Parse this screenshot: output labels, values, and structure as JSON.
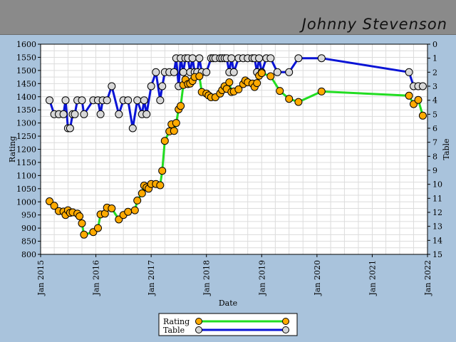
{
  "header": {
    "player_name": "Johnny Stevenson"
  },
  "colors": {
    "background": "#a9c3dc",
    "header": "#8a8a8a",
    "plot_bg": "#ffffff",
    "grid": "#dcdcdc",
    "rating_line": "#22dd22",
    "rating_marker": "#ffaa00",
    "table_line": "#0a14d6",
    "table_marker": "#d8d8d8"
  },
  "chart_data": {
    "type": "line",
    "title": "",
    "xlabel": "Date",
    "ylabel": "Rating",
    "y2label": "Table",
    "xlim": [
      "2015-01-01",
      "2022-01-01"
    ],
    "ylim": [
      800,
      1600
    ],
    "y2lim": [
      15,
      0
    ],
    "y2_inverted": true,
    "grid": true,
    "legend_position": "bottom-center",
    "x_ticks": [
      "Jan 2015",
      "Jan 2016",
      "Jan 2017",
      "Jan 2018",
      "Jan 2019",
      "Jan 2020",
      "Jan 2021",
      "Jan 2022"
    ],
    "y_ticks": [
      800,
      850,
      900,
      950,
      1000,
      1050,
      1100,
      1150,
      1200,
      1250,
      1300,
      1350,
      1400,
      1450,
      1500,
      1550,
      1600
    ],
    "y2_ticks": [
      0,
      1,
      2,
      3,
      4,
      5,
      6,
      7,
      8,
      9,
      10,
      11,
      12,
      13,
      14,
      15
    ],
    "series": [
      {
        "name": "Rating",
        "axis": "left",
        "points": [
          [
            "2015-03-01",
            1002
          ],
          [
            "2015-04-01",
            985
          ],
          [
            "2015-05-01",
            965
          ],
          [
            "2015-06-01",
            963
          ],
          [
            "2015-06-15",
            950
          ],
          [
            "2015-07-01",
            968
          ],
          [
            "2015-07-15",
            958
          ],
          [
            "2015-08-01",
            960
          ],
          [
            "2015-09-01",
            955
          ],
          [
            "2015-09-15",
            945
          ],
          [
            "2015-10-01",
            918
          ],
          [
            "2015-10-15",
            875
          ],
          [
            "2015-12-15",
            885
          ],
          [
            "2016-01-15",
            900
          ],
          [
            "2016-02-01",
            952
          ],
          [
            "2016-03-01",
            955
          ],
          [
            "2016-03-15",
            978
          ],
          [
            "2016-04-15",
            975
          ],
          [
            "2016-06-01",
            933
          ],
          [
            "2016-07-01",
            950
          ],
          [
            "2016-08-01",
            962
          ],
          [
            "2016-09-15",
            968
          ],
          [
            "2016-10-01",
            1005
          ],
          [
            "2016-11-01",
            1032
          ],
          [
            "2016-11-15",
            1062
          ],
          [
            "2016-12-01",
            1055
          ],
          [
            "2016-12-15",
            1050
          ],
          [
            "2017-01-01",
            1068
          ],
          [
            "2017-02-01",
            1068
          ],
          [
            "2017-03-01",
            1063
          ],
          [
            "2017-03-15",
            1118
          ],
          [
            "2017-04-01",
            1232
          ],
          [
            "2017-05-01",
            1268
          ],
          [
            "2017-05-15",
            1295
          ],
          [
            "2017-06-01",
            1270
          ],
          [
            "2017-06-15",
            1300
          ],
          [
            "2017-07-01",
            1352
          ],
          [
            "2017-07-15",
            1365
          ],
          [
            "2017-08-01",
            1445
          ],
          [
            "2017-08-15",
            1465
          ],
          [
            "2017-09-01",
            1448
          ],
          [
            "2017-09-15",
            1450
          ],
          [
            "2017-10-01",
            1460
          ],
          [
            "2017-10-15",
            1475
          ],
          [
            "2017-11-15",
            1478
          ],
          [
            "2017-12-01",
            1418
          ],
          [
            "2018-01-01",
            1412
          ],
          [
            "2018-01-15",
            1405
          ],
          [
            "2018-02-01",
            1398
          ],
          [
            "2018-03-01",
            1398
          ],
          [
            "2018-04-01",
            1412
          ],
          [
            "2018-04-15",
            1425
          ],
          [
            "2018-05-01",
            1440
          ],
          [
            "2018-05-15",
            1430
          ],
          [
            "2018-06-01",
            1455
          ],
          [
            "2018-06-15",
            1418
          ],
          [
            "2018-07-01",
            1420
          ],
          [
            "2018-08-01",
            1428
          ],
          [
            "2018-09-01",
            1448
          ],
          [
            "2018-09-15",
            1462
          ],
          [
            "2018-10-01",
            1455
          ],
          [
            "2018-11-01",
            1450
          ],
          [
            "2018-11-15",
            1437
          ],
          [
            "2018-12-01",
            1452
          ],
          [
            "2018-12-15",
            1480
          ],
          [
            "2019-01-01",
            1490
          ],
          [
            "2019-03-01",
            1478
          ],
          [
            "2019-05-01",
            1422
          ],
          [
            "2019-07-01",
            1392
          ],
          [
            "2019-09-01",
            1380
          ],
          [
            "2020-02-01",
            1420
          ],
          [
            "2021-09-01",
            1404
          ],
          [
            "2021-10-01",
            1372
          ],
          [
            "2021-11-01",
            1388
          ],
          [
            "2021-12-01",
            1328
          ]
        ]
      },
      {
        "name": "Table",
        "axis": "right",
        "points": [
          [
            "2015-03-01",
            4
          ],
          [
            "2015-04-01",
            5
          ],
          [
            "2015-05-01",
            5
          ],
          [
            "2015-06-01",
            5
          ],
          [
            "2015-06-15",
            4
          ],
          [
            "2015-07-01",
            6
          ],
          [
            "2015-07-15",
            6
          ],
          [
            "2015-08-01",
            5
          ],
          [
            "2015-08-15",
            5
          ],
          [
            "2015-09-01",
            4
          ],
          [
            "2015-10-01",
            4
          ],
          [
            "2015-10-15",
            5
          ],
          [
            "2015-12-15",
            4
          ],
          [
            "2016-01-15",
            4
          ],
          [
            "2016-02-01",
            5
          ],
          [
            "2016-02-15",
            4
          ],
          [
            "2016-03-15",
            4
          ],
          [
            "2016-04-15",
            3
          ],
          [
            "2016-06-01",
            5
          ],
          [
            "2016-07-01",
            4
          ],
          [
            "2016-08-01",
            4
          ],
          [
            "2016-09-01",
            6
          ],
          [
            "2016-10-01",
            4
          ],
          [
            "2016-11-01",
            5
          ],
          [
            "2016-11-15",
            4
          ],
          [
            "2016-12-01",
            5
          ],
          [
            "2017-01-01",
            3
          ],
          [
            "2017-02-01",
            2
          ],
          [
            "2017-03-01",
            4
          ],
          [
            "2017-03-15",
            3
          ],
          [
            "2017-04-01",
            2
          ],
          [
            "2017-05-01",
            2
          ],
          [
            "2017-06-01",
            2
          ],
          [
            "2017-06-15",
            1
          ],
          [
            "2017-07-01",
            3
          ],
          [
            "2017-07-15",
            1
          ],
          [
            "2017-08-01",
            2
          ],
          [
            "2017-08-15",
            1
          ],
          [
            "2017-09-01",
            1
          ],
          [
            "2017-09-15",
            2
          ],
          [
            "2017-10-01",
            1
          ],
          [
            "2017-10-15",
            2
          ],
          [
            "2017-11-01",
            2
          ],
          [
            "2017-11-15",
            1
          ],
          [
            "2017-12-01",
            2
          ],
          [
            "2018-01-01",
            2
          ],
          [
            "2018-02-01",
            1
          ],
          [
            "2018-02-15",
            1
          ],
          [
            "2018-03-01",
            1
          ],
          [
            "2018-04-01",
            1
          ],
          [
            "2018-04-15",
            1
          ],
          [
            "2018-05-01",
            1
          ],
          [
            "2018-05-15",
            1
          ],
          [
            "2018-06-01",
            2
          ],
          [
            "2018-06-15",
            1
          ],
          [
            "2018-07-01",
            2
          ],
          [
            "2018-08-01",
            1
          ],
          [
            "2018-09-01",
            1
          ],
          [
            "2018-10-01",
            1
          ],
          [
            "2018-11-01",
            1
          ],
          [
            "2018-11-15",
            1
          ],
          [
            "2018-12-01",
            2
          ],
          [
            "2018-12-15",
            1
          ],
          [
            "2019-01-01",
            2
          ],
          [
            "2019-02-01",
            1
          ],
          [
            "2019-03-01",
            1
          ],
          [
            "2019-04-15",
            2
          ],
          [
            "2019-07-01",
            2
          ],
          [
            "2019-09-01",
            1
          ],
          [
            "2020-02-01",
            1
          ],
          [
            "2021-09-01",
            2
          ],
          [
            "2021-10-01",
            3
          ],
          [
            "2021-11-01",
            3
          ],
          [
            "2021-12-01",
            3
          ]
        ]
      }
    ]
  }
}
